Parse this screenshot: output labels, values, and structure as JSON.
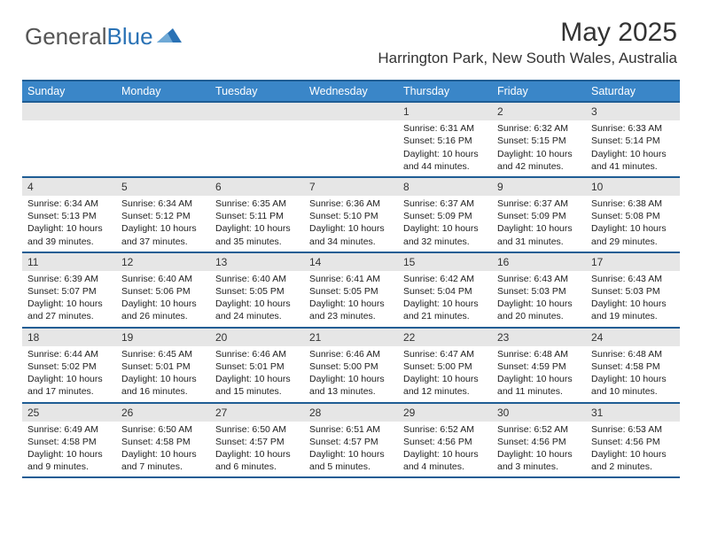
{
  "brand": {
    "name_part1": "General",
    "name_part2": "Blue"
  },
  "title": "May 2025",
  "location": "Harrington Park, New South Wales, Australia",
  "colors": {
    "header_bg": "#3a86c8",
    "header_border": "#1f5d94",
    "daynum_bg": "#e6e6e6",
    "text": "#222222"
  },
  "weekdays": [
    "Sunday",
    "Monday",
    "Tuesday",
    "Wednesday",
    "Thursday",
    "Friday",
    "Saturday"
  ],
  "weeks": [
    [
      null,
      null,
      null,
      null,
      {
        "n": "1",
        "sr": "6:31 AM",
        "ss": "5:16 PM",
        "dl": "10 hours and 44 minutes."
      },
      {
        "n": "2",
        "sr": "6:32 AM",
        "ss": "5:15 PM",
        "dl": "10 hours and 42 minutes."
      },
      {
        "n": "3",
        "sr": "6:33 AM",
        "ss": "5:14 PM",
        "dl": "10 hours and 41 minutes."
      }
    ],
    [
      {
        "n": "4",
        "sr": "6:34 AM",
        "ss": "5:13 PM",
        "dl": "10 hours and 39 minutes."
      },
      {
        "n": "5",
        "sr": "6:34 AM",
        "ss": "5:12 PM",
        "dl": "10 hours and 37 minutes."
      },
      {
        "n": "6",
        "sr": "6:35 AM",
        "ss": "5:11 PM",
        "dl": "10 hours and 35 minutes."
      },
      {
        "n": "7",
        "sr": "6:36 AM",
        "ss": "5:10 PM",
        "dl": "10 hours and 34 minutes."
      },
      {
        "n": "8",
        "sr": "6:37 AM",
        "ss": "5:09 PM",
        "dl": "10 hours and 32 minutes."
      },
      {
        "n": "9",
        "sr": "6:37 AM",
        "ss": "5:09 PM",
        "dl": "10 hours and 31 minutes."
      },
      {
        "n": "10",
        "sr": "6:38 AM",
        "ss": "5:08 PM",
        "dl": "10 hours and 29 minutes."
      }
    ],
    [
      {
        "n": "11",
        "sr": "6:39 AM",
        "ss": "5:07 PM",
        "dl": "10 hours and 27 minutes."
      },
      {
        "n": "12",
        "sr": "6:40 AM",
        "ss": "5:06 PM",
        "dl": "10 hours and 26 minutes."
      },
      {
        "n": "13",
        "sr": "6:40 AM",
        "ss": "5:05 PM",
        "dl": "10 hours and 24 minutes."
      },
      {
        "n": "14",
        "sr": "6:41 AM",
        "ss": "5:05 PM",
        "dl": "10 hours and 23 minutes."
      },
      {
        "n": "15",
        "sr": "6:42 AM",
        "ss": "5:04 PM",
        "dl": "10 hours and 21 minutes."
      },
      {
        "n": "16",
        "sr": "6:43 AM",
        "ss": "5:03 PM",
        "dl": "10 hours and 20 minutes."
      },
      {
        "n": "17",
        "sr": "6:43 AM",
        "ss": "5:03 PM",
        "dl": "10 hours and 19 minutes."
      }
    ],
    [
      {
        "n": "18",
        "sr": "6:44 AM",
        "ss": "5:02 PM",
        "dl": "10 hours and 17 minutes."
      },
      {
        "n": "19",
        "sr": "6:45 AM",
        "ss": "5:01 PM",
        "dl": "10 hours and 16 minutes."
      },
      {
        "n": "20",
        "sr": "6:46 AM",
        "ss": "5:01 PM",
        "dl": "10 hours and 15 minutes."
      },
      {
        "n": "21",
        "sr": "6:46 AM",
        "ss": "5:00 PM",
        "dl": "10 hours and 13 minutes."
      },
      {
        "n": "22",
        "sr": "6:47 AM",
        "ss": "5:00 PM",
        "dl": "10 hours and 12 minutes."
      },
      {
        "n": "23",
        "sr": "6:48 AM",
        "ss": "4:59 PM",
        "dl": "10 hours and 11 minutes."
      },
      {
        "n": "24",
        "sr": "6:48 AM",
        "ss": "4:58 PM",
        "dl": "10 hours and 10 minutes."
      }
    ],
    [
      {
        "n": "25",
        "sr": "6:49 AM",
        "ss": "4:58 PM",
        "dl": "10 hours and 9 minutes."
      },
      {
        "n": "26",
        "sr": "6:50 AM",
        "ss": "4:58 PM",
        "dl": "10 hours and 7 minutes."
      },
      {
        "n": "27",
        "sr": "6:50 AM",
        "ss": "4:57 PM",
        "dl": "10 hours and 6 minutes."
      },
      {
        "n": "28",
        "sr": "6:51 AM",
        "ss": "4:57 PM",
        "dl": "10 hours and 5 minutes."
      },
      {
        "n": "29",
        "sr": "6:52 AM",
        "ss": "4:56 PM",
        "dl": "10 hours and 4 minutes."
      },
      {
        "n": "30",
        "sr": "6:52 AM",
        "ss": "4:56 PM",
        "dl": "10 hours and 3 minutes."
      },
      {
        "n": "31",
        "sr": "6:53 AM",
        "ss": "4:56 PM",
        "dl": "10 hours and 2 minutes."
      }
    ]
  ],
  "labels": {
    "sunrise": "Sunrise:",
    "sunset": "Sunset:",
    "daylight": "Daylight:"
  }
}
